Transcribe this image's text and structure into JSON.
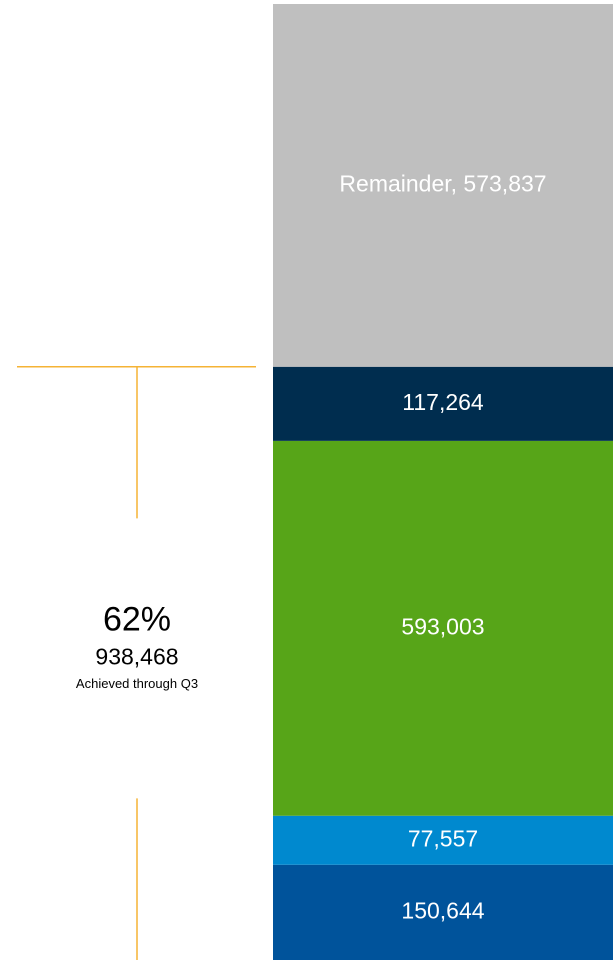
{
  "chart_data": {
    "type": "stacked-bar",
    "series": [
      {
        "color": "#00539b",
        "values": [
          150644
        ],
        "value_labels": [
          "150,644"
        ]
      },
      {
        "color": "#0089cf",
        "values": [
          77557
        ],
        "value_labels": [
          "77,557"
        ]
      },
      {
        "color": "#57a518",
        "values": [
          593003
        ],
        "value_labels": [
          "593,003"
        ]
      },
      {
        "color": "#002d4f",
        "values": [
          117264
        ],
        "value_labels": [
          "117,264"
        ]
      },
      {
        "name": "Remainder",
        "color": "#bfbfbf",
        "values": [
          573837
        ],
        "value_labels": [
          "Remainder, 573,837"
        ]
      }
    ],
    "annotation": {
      "percent": {
        "value": 62,
        "label": "62%"
      },
      "total": {
        "value": 938468,
        "label": "938,468"
      },
      "note": "Achieved through Q3",
      "color": "#f5b335"
    }
  }
}
